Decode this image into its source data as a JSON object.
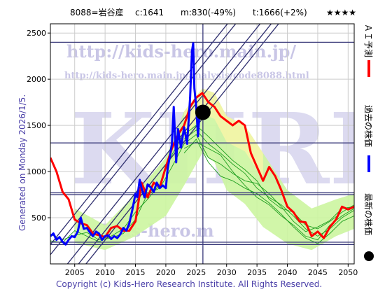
{
  "header": {
    "title": "8088=岩谷産",
    "current": "c:1641",
    "min": "m:830(-49%)",
    "target": "t:1666(+2%)",
    "stars": "★★★★"
  },
  "side_label": "Generated on Monday 2026/1/5.",
  "copyright": "Copyright (c) Kids-Hero Research Institute. All Rights Reserved.",
  "watermark": {
    "url": "http://kids-hero.main.jp/",
    "url_small": "http://kids-hero.main.jp/analysis/code8088.html",
    "big": "KHRI",
    "mid": "kids-hero.m"
  },
  "legend": [
    {
      "label": "ＡＩ予測",
      "color": "#ff0000"
    },
    {
      "label": "過去の株価",
      "color": "#0000ff"
    },
    {
      "label": "最新の株価",
      "color": "#000000"
    }
  ],
  "colors": {
    "forecast": "#ff0000",
    "price": "#0000ff",
    "band": "#ccf5a0",
    "band_yellow": "#f7f4a8",
    "sim": "#1e9e1e",
    "trend": "#2e2e6e",
    "hline": "#3a3a7a"
  },
  "chart_data": {
    "type": "line",
    "xlim": [
      2001,
      2051
    ],
    "ylim": [
      0,
      2600
    ],
    "x_ticks": [
      2005,
      2010,
      2015,
      2020,
      2025,
      2030,
      2035,
      2040,
      2045,
      2050
    ],
    "y_ticks": [
      500,
      1000,
      1500,
      2000,
      2500
    ],
    "latest_point": {
      "x": 2026.1,
      "y": 1641
    },
    "latest_vline_x": 2026.1,
    "horizontal_lines": [
      2400,
      1310,
      770,
      750,
      235,
      210
    ],
    "trend_lines": [
      {
        "x0": 2001,
        "y0": 210,
        "slope": 82
      },
      {
        "x0": 2001,
        "y0": 100,
        "slope": 82
      },
      {
        "x0": 2001,
        "y0": -230,
        "slope": 82
      },
      {
        "x0": 2001,
        "y0": -380,
        "slope": 82
      },
      {
        "x0": 2001,
        "y0": -480,
        "slope": 82
      }
    ],
    "series": [
      {
        "name": "過去の株価",
        "x": [
          2001.0,
          2001.5,
          2002.0,
          2002.5,
          2003.0,
          2003.5,
          2004.0,
          2004.5,
          2005.0,
          2005.5,
          2006.0,
          2006.5,
          2007.0,
          2007.5,
          2008.0,
          2008.5,
          2009.0,
          2009.5,
          2010.0,
          2010.5,
          2011.0,
          2011.5,
          2012.0,
          2012.5,
          2013.0,
          2013.5,
          2014.0,
          2014.5,
          2015.0,
          2015.3,
          2015.7,
          2016.0,
          2016.5,
          2017.0,
          2017.5,
          2018.0,
          2018.5,
          2019.0,
          2019.5,
          2020.0,
          2020.3,
          2020.7,
          2021.0,
          2021.3,
          2021.7,
          2022.0,
          2022.5,
          2023.0,
          2023.5,
          2024.0,
          2024.3,
          2024.5,
          2024.7,
          2025.0,
          2025.3,
          2025.6,
          2025.8,
          2026.0
        ],
        "y": [
          300,
          330,
          260,
          290,
          240,
          210,
          260,
          300,
          290,
          350,
          500,
          380,
          390,
          340,
          300,
          350,
          330,
          260,
          300,
          310,
          270,
          300,
          280,
          320,
          390,
          360,
          440,
          590,
          760,
          720,
          910,
          820,
          720,
          860,
          830,
          780,
          880,
          820,
          850,
          820,
          1030,
          1180,
          1300,
          1700,
          1100,
          1460,
          1260,
          1480,
          1300,
          1800,
          2300,
          2390,
          1900,
          1700,
          1380,
          1700,
          1600,
          1641
        ]
      },
      {
        "name": "ＡＩ予測",
        "x": [
          2001.0,
          2002.0,
          2003.0,
          2004.0,
          2005.0,
          2006.0,
          2007.0,
          2008.0,
          2009.0,
          2010.0,
          2011.0,
          2012.0,
          2013.0,
          2014.0,
          2015.0,
          2016.0,
          2017.0,
          2018.0,
          2019.0,
          2020.0,
          2021.0,
          2022.0,
          2023.0,
          2024.0,
          2025.0,
          2026.0,
          2027.0,
          2028.0,
          2029.0,
          2030.0,
          2031.0,
          2032.0,
          2033.0,
          2034.0,
          2035.0,
          2036.0,
          2037.0,
          2038.0,
          2039.0,
          2040.0,
          2041.0,
          2042.0,
          2043.0,
          2044.0,
          2045.0,
          2046.0,
          2047.0,
          2048.0,
          2049.0,
          2050.0,
          2051.0
        ],
        "y": [
          1150,
          1000,
          780,
          700,
          480,
          440,
          420,
          330,
          310,
          290,
          390,
          410,
          360,
          360,
          460,
          880,
          720,
          880,
          830,
          1050,
          1250,
          1400,
          1500,
          1700,
          1800,
          1850,
          1750,
          1700,
          1600,
          1550,
          1500,
          1550,
          1500,
          1200,
          1050,
          900,
          1050,
          950,
          800,
          620,
          560,
          460,
          450,
          300,
          350,
          280,
          400,
          480,
          620,
          590,
          620
        ]
      }
    ],
    "band_upper": [
      [
        2005,
        600
      ],
      [
        2010,
        420
      ],
      [
        2015,
        760
      ],
      [
        2020,
        1150
      ],
      [
        2023,
        1650
      ],
      [
        2026,
        1900
      ],
      [
        2028,
        1850
      ],
      [
        2030,
        1600
      ],
      [
        2033,
        1500
      ],
      [
        2036,
        1200
      ],
      [
        2040,
        800
      ],
      [
        2044,
        600
      ],
      [
        2048,
        700
      ],
      [
        2051,
        760
      ]
    ],
    "band_lower": [
      [
        2005,
        230
      ],
      [
        2010,
        150
      ],
      [
        2015,
        300
      ],
      [
        2020,
        520
      ],
      [
        2023,
        850
      ],
      [
        2026,
        1200
      ],
      [
        2028,
        1100
      ],
      [
        2030,
        800
      ],
      [
        2033,
        650
      ],
      [
        2036,
        400
      ],
      [
        2040,
        220
      ],
      [
        2044,
        150
      ],
      [
        2048,
        300
      ],
      [
        2051,
        380
      ]
    ],
    "sim_lines": [
      {
        "x": [
          2023,
          2025,
          2027,
          2029,
          2031,
          2033,
          2035,
          2037,
          2039,
          2041,
          2043,
          2045,
          2047,
          2049,
          2051
        ],
        "y": [
          1300,
          1400,
          1150,
          1080,
          980,
          900,
          870,
          760,
          620,
          460,
          350,
          400,
          470,
          600,
          620
        ]
      },
      {
        "x": [
          2023,
          2025,
          2027,
          2029,
          2031,
          2033,
          2035,
          2037,
          2039,
          2041,
          2043,
          2045,
          2047,
          2049,
          2051
        ],
        "y": [
          1250,
          1320,
          1250,
          1180,
          1000,
          850,
          720,
          640,
          520,
          420,
          300,
          260,
          420,
          520,
          600
        ]
      },
      {
        "x": [
          2023,
          2025,
          2027,
          2029,
          2031,
          2033,
          2035,
          2037,
          2039,
          2041,
          2043,
          2045,
          2047,
          2049,
          2051
        ],
        "y": [
          1400,
          1500,
          1380,
          1250,
          1120,
          1020,
          900,
          700,
          600,
          560,
          420,
          380,
          460,
          560,
          640
        ]
      },
      {
        "x": [
          2023,
          2025,
          2027,
          2029,
          2031,
          2033,
          2035,
          2037,
          2039,
          2041,
          2043,
          2045,
          2047,
          2049,
          2051
        ],
        "y": [
          1200,
          1350,
          1100,
          950,
          900,
          820,
          760,
          660,
          540,
          400,
          280,
          220,
          330,
          460,
          520
        ]
      },
      {
        "x": [
          2023,
          2025,
          2027,
          2029,
          2031,
          2033,
          2035,
          2037,
          2039,
          2041,
          2043,
          2045,
          2047,
          2049,
          2051
        ],
        "y": [
          1350,
          1450,
          1300,
          1200,
          1080,
          980,
          820,
          720,
          640,
          520,
          380,
          300,
          380,
          500,
          580
        ]
      },
      {
        "x": [
          2001,
          2003,
          2005,
          2007,
          2009,
          2011,
          2013,
          2015,
          2017,
          2019,
          2021,
          2023
        ],
        "y": [
          320,
          260,
          310,
          340,
          260,
          280,
          330,
          480,
          760,
          820,
          1050,
          1300
        ]
      },
      {
        "x": [
          2001,
          2003,
          2005,
          2007,
          2009,
          2011,
          2013,
          2015,
          2017,
          2019,
          2021,
          2023
        ],
        "y": [
          250,
          230,
          360,
          300,
          240,
          300,
          380,
          560,
          700,
          860,
          1180,
          1420
        ]
      }
    ]
  }
}
